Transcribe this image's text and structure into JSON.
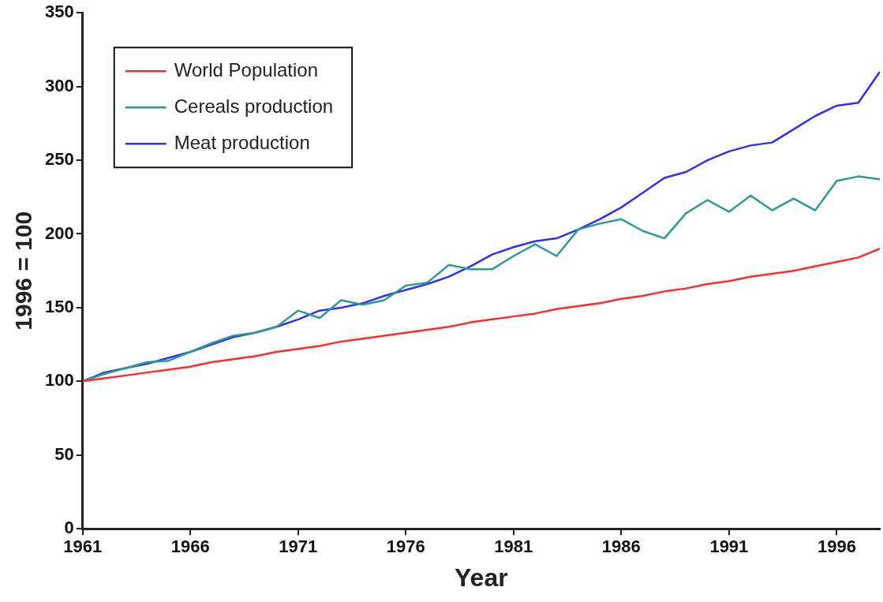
{
  "chart_data": {
    "type": "line",
    "xlabel": "Year",
    "ylabel": "1996 = 100",
    "x": [
      1961,
      1962,
      1963,
      1964,
      1965,
      1966,
      1967,
      1968,
      1969,
      1970,
      1971,
      1972,
      1973,
      1974,
      1975,
      1976,
      1977,
      1978,
      1979,
      1980,
      1981,
      1982,
      1983,
      1984,
      1985,
      1986,
      1987,
      1988,
      1989,
      1990,
      1991,
      1992,
      1993,
      1994,
      1995,
      1996,
      1997,
      1998
    ],
    "xlim": [
      1961,
      1998
    ],
    "xticks": [
      1961,
      1966,
      1971,
      1976,
      1981,
      1986,
      1991,
      1996
    ],
    "ylim": [
      0,
      350
    ],
    "yticks": [
      0,
      50,
      100,
      150,
      200,
      250,
      300,
      350
    ],
    "grid": false,
    "legend": "top left",
    "marker": "none",
    "line_style": "solid",
    "series": [
      {
        "name": "World Population",
        "color": "#ff2a2a",
        "values": [
          100,
          102,
          104,
          106,
          108,
          110,
          113,
          115,
          117,
          120,
          122,
          124,
          127,
          129,
          131,
          133,
          135,
          137,
          140,
          142,
          144,
          146,
          149,
          151,
          153,
          156,
          158,
          161,
          163,
          166,
          168,
          171,
          173,
          175,
          178,
          181,
          184,
          190
        ]
      },
      {
        "name": "Cereals production",
        "color": "#2e9a94",
        "values": [
          100,
          105,
          109,
          113,
          114,
          120,
          126,
          131,
          133,
          137,
          148,
          143,
          155,
          152,
          155,
          165,
          167,
          179,
          176,
          176,
          185,
          193,
          185,
          203,
          207,
          210,
          202,
          197,
          214,
          223,
          215,
          226,
          216,
          224,
          216,
          236,
          239,
          237
        ]
      },
      {
        "name": "Meat production",
        "color": "#2f2ff5",
        "values": [
          100,
          106,
          109,
          112,
          116,
          120,
          125,
          130,
          133,
          137,
          142,
          148,
          150,
          153,
          158,
          162,
          166,
          171,
          178,
          186,
          191,
          195,
          197,
          203,
          210,
          218,
          228,
          238,
          242,
          250,
          256,
          260,
          262,
          271,
          280,
          287,
          289,
          310
        ]
      }
    ]
  }
}
